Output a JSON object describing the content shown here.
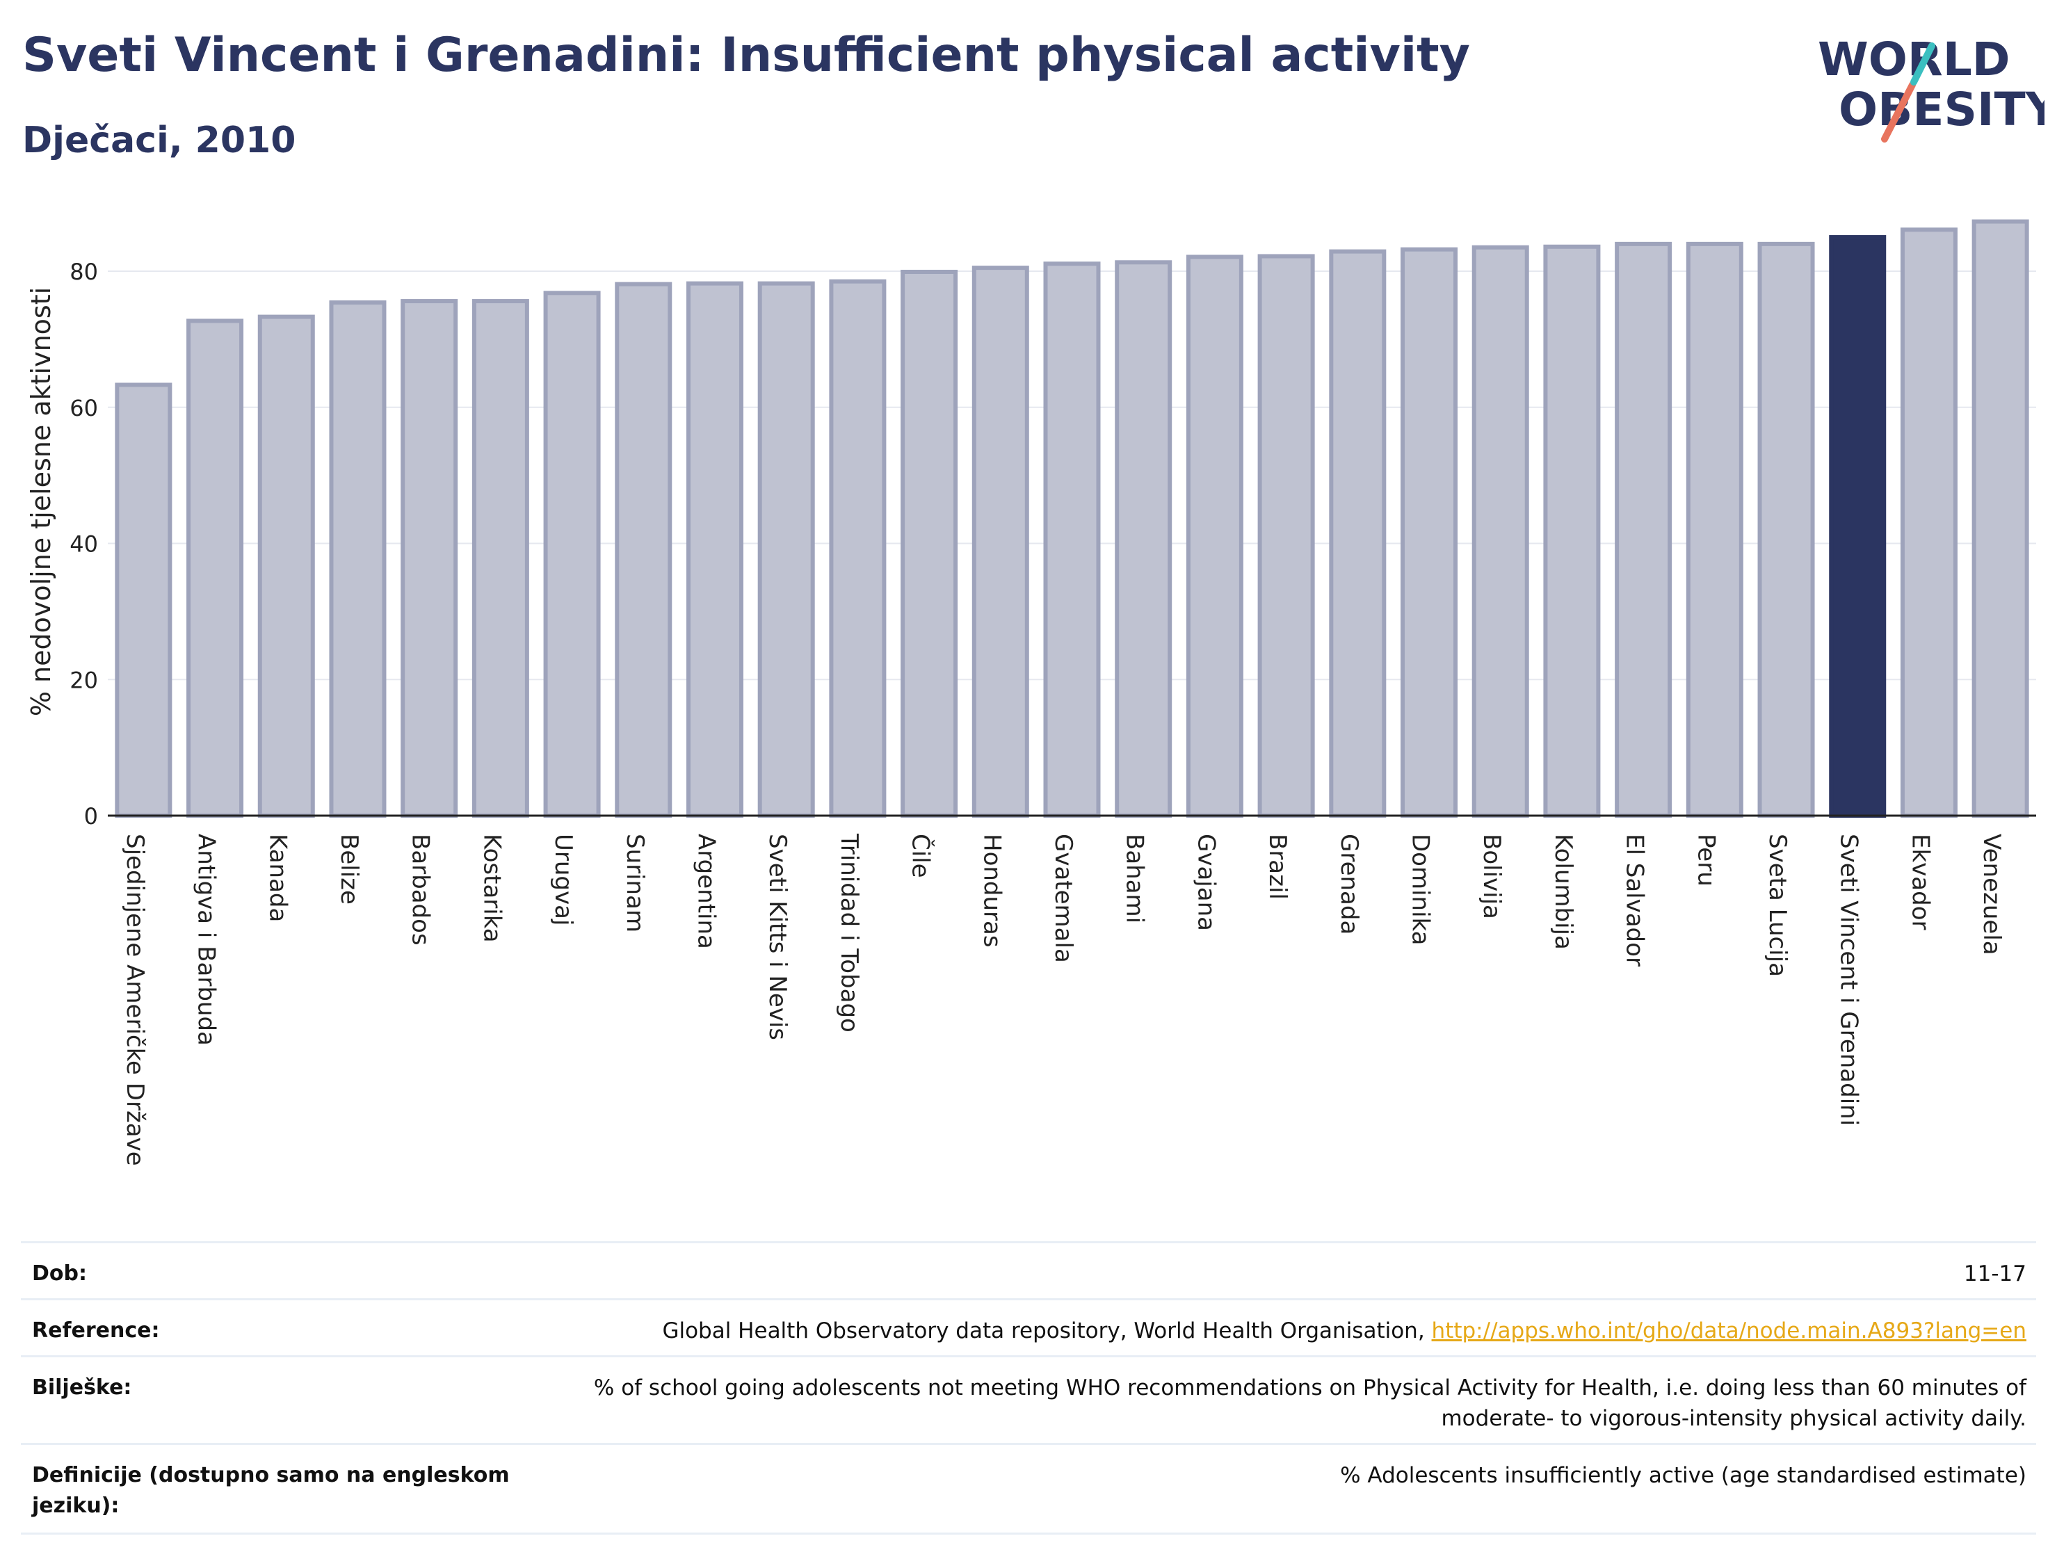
{
  "header": {
    "title": "Sveti Vincent i Grenadini: Insufficient physical activity",
    "subtitle": "Dječaci, 2010"
  },
  "logo": {
    "line1": "WORLD",
    "line2": "OBESITY",
    "colors": {
      "text": "#2b3561",
      "slash_teal": "#3bbfc0",
      "slash_coral": "#e8745e"
    }
  },
  "colors": {
    "bar_default": "#bfc2d1",
    "bar_default_stroke": "#9ea3bb",
    "bar_highlight": "#2b3561",
    "grid": "#e6e8ef",
    "axis": "#222222",
    "text": "#222222"
  },
  "chart_data": {
    "type": "bar",
    "ylabel": "% nedovoljne tjelesne aktivnosti",
    "xlabel": "",
    "ylim": [
      0,
      90
    ],
    "yticks": [
      0,
      20,
      40,
      60,
      80
    ],
    "grid": true,
    "highlight": "Sveti Vincent i Grenadini",
    "categories": [
      "Sjedinjene Američke Države",
      "Antigva i Barbuda",
      "Kanada",
      "Belize",
      "Barbados",
      "Kostarika",
      "Urugvaj",
      "Surinam",
      "Argentina",
      "Sveti Kitts i Nevis",
      "Trinidad i Tobago",
      "Čile",
      "Honduras",
      "Gvatemala",
      "Bahami",
      "Gvajana",
      "Brazil",
      "Grenada",
      "Dominika",
      "Bolivija",
      "Kolumbija",
      "El Salvador",
      "Peru",
      "Sveta Lucija",
      "Sveti Vincent i Grenadini",
      "Ekvador",
      "Venezuela"
    ],
    "values": [
      63.3,
      72.7,
      73.3,
      75.4,
      75.6,
      75.6,
      76.8,
      78.1,
      78.2,
      78.2,
      78.5,
      79.9,
      80.5,
      81.1,
      81.3,
      82.1,
      82.2,
      82.9,
      83.2,
      83.5,
      83.6,
      84.0,
      84.0,
      84.0,
      85.0,
      86.1,
      87.3
    ]
  },
  "meta": {
    "rows": [
      {
        "label": "Dob:",
        "value": "11-17"
      },
      {
        "label": "Reference:",
        "value": "Global Health Observatory data repository, World Health Organisation, ",
        "link": "http://apps.who.int/gho/data/node.main.A893?lang=en"
      },
      {
        "label": "Bilješke:",
        "value": "% of school going adolescents not meeting WHO recommendations on Physical Activity for Health, i.e. doing less than 60 minutes of",
        "value2": "moderate- to vigorous-intensity physical activity daily."
      },
      {
        "label": "Definicije (dostupno samo na engleskom",
        "label2": "jeziku):",
        "value": "% Adolescents insufficiently active (age standardised estimate)"
      }
    ]
  }
}
